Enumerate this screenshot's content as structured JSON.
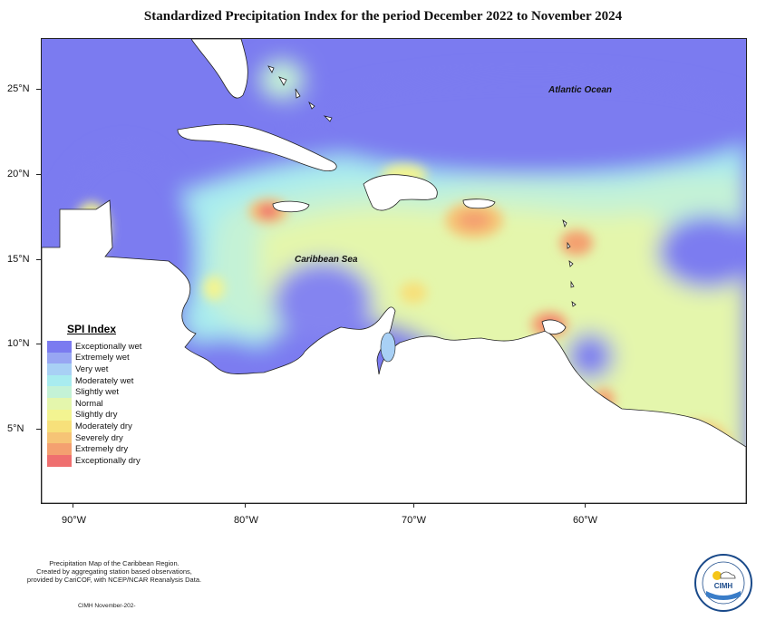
{
  "title": "Standardized Precipitation Index for the period December 2022 to November 2024",
  "map": {
    "latitude_labels": [
      "25°N",
      "20°N",
      "15°N",
      "10°N",
      "5°N"
    ],
    "longitude_labels": [
      "90°W",
      "80°W",
      "70°W",
      "60°W"
    ],
    "place_labels": {
      "atlantic": "Atlantic Ocean",
      "caribbean": "Caribbean Sea"
    },
    "colors": {
      "exceptionally_wet": "#7b7bf0",
      "slightly_wet": "#bdf0d8",
      "normal": "#e6f7a8",
      "exceptionally_dry": "#ef6f6f",
      "land": "#ffffff"
    }
  },
  "legend": {
    "title": "SPI Index",
    "items": [
      {
        "label": "Exceptionally wet",
        "color": "#7b7bf0"
      },
      {
        "label": "Extremely wet",
        "color": "#98a6f3"
      },
      {
        "label": "Very wet",
        "color": "#a8d0f5"
      },
      {
        "label": "Moderately wet",
        "color": "#a8ecef"
      },
      {
        "label": "Slightly wet",
        "color": "#c4f2d6"
      },
      {
        "label": "Normal",
        "color": "#e4f6ac"
      },
      {
        "label": "Slightly dry",
        "color": "#f3f491"
      },
      {
        "label": "Moderately dry",
        "color": "#f7e07a"
      },
      {
        "label": "Severely dry",
        "color": "#f6c476"
      },
      {
        "label": "Extremely dry",
        "color": "#f4a070"
      },
      {
        "label": "Exceptionally dry",
        "color": "#ef6f6f"
      }
    ]
  },
  "footnote": {
    "lines": [
      "Precipitation Map of the Caribbean Region.",
      "Created by aggregating station based observations,",
      "provided by CariCOF, with NCEP/NCAR Reanalysis Data."
    ],
    "credit": "CIMH November-202‐"
  },
  "logo": {
    "text": "CIMH"
  }
}
